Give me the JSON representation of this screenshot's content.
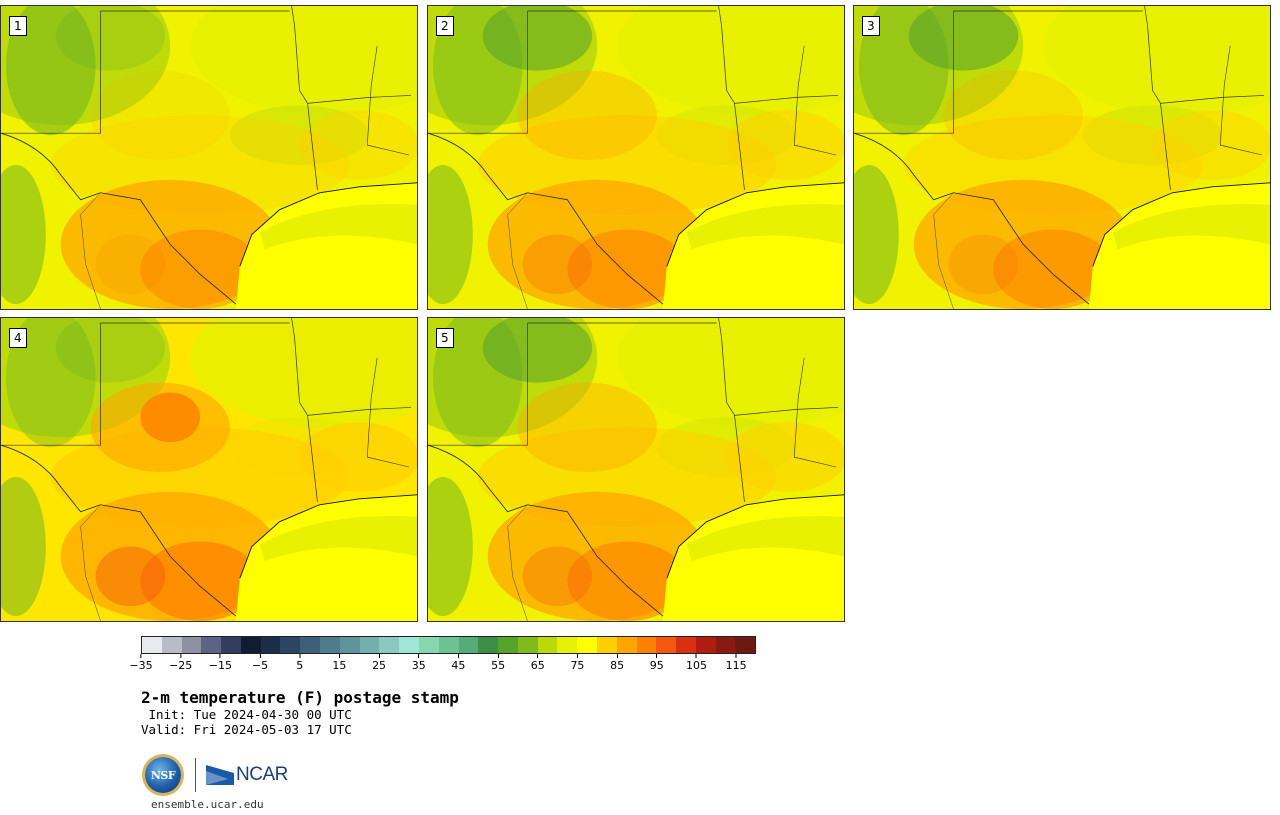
{
  "panels": [
    {
      "label": "1",
      "hot": 0.15
    },
    {
      "label": "2",
      "hot": 0.45
    },
    {
      "label": "3",
      "hot": 0.3
    },
    {
      "label": "4",
      "hot": 0.75
    },
    {
      "label": "5",
      "hot": 0.5
    }
  ],
  "colorbar": {
    "colors": [
      "#e8eaee",
      "#b9bbc6",
      "#8e91a3",
      "#5d6382",
      "#333d5e",
      "#101c34",
      "#1c2d4a",
      "#2b4663",
      "#3d5f77",
      "#4f7c8a",
      "#5f949b",
      "#74afad",
      "#8bc9c0",
      "#a0e6d6",
      "#87d6b0",
      "#6cc293",
      "#55ab79",
      "#3d8f46",
      "#55a32b",
      "#7fbb1d",
      "#b9d90b",
      "#e7f003",
      "#ffff00",
      "#ffd000",
      "#ffa500",
      "#ff7f00",
      "#f55710",
      "#d83010",
      "#b01d10",
      "#8a1a10",
      "#6a1a10"
    ],
    "tick_labels": [
      "−35",
      "−25",
      "−15",
      "−5",
      "5",
      "15",
      "25",
      "35",
      "45",
      "55",
      "65",
      "75",
      "85",
      "95",
      "105",
      "115"
    ]
  },
  "title": "2-m temperature (F) postage stamp",
  "init_text": " Init: Tue 2024-04-30 00 UTC",
  "valid_text": "Valid: Fri 2024-05-03 17 UTC",
  "logos": {
    "nsf_text": "NSF",
    "ncar_text": "NCAR"
  },
  "site": "ensemble.ucar.edu"
}
